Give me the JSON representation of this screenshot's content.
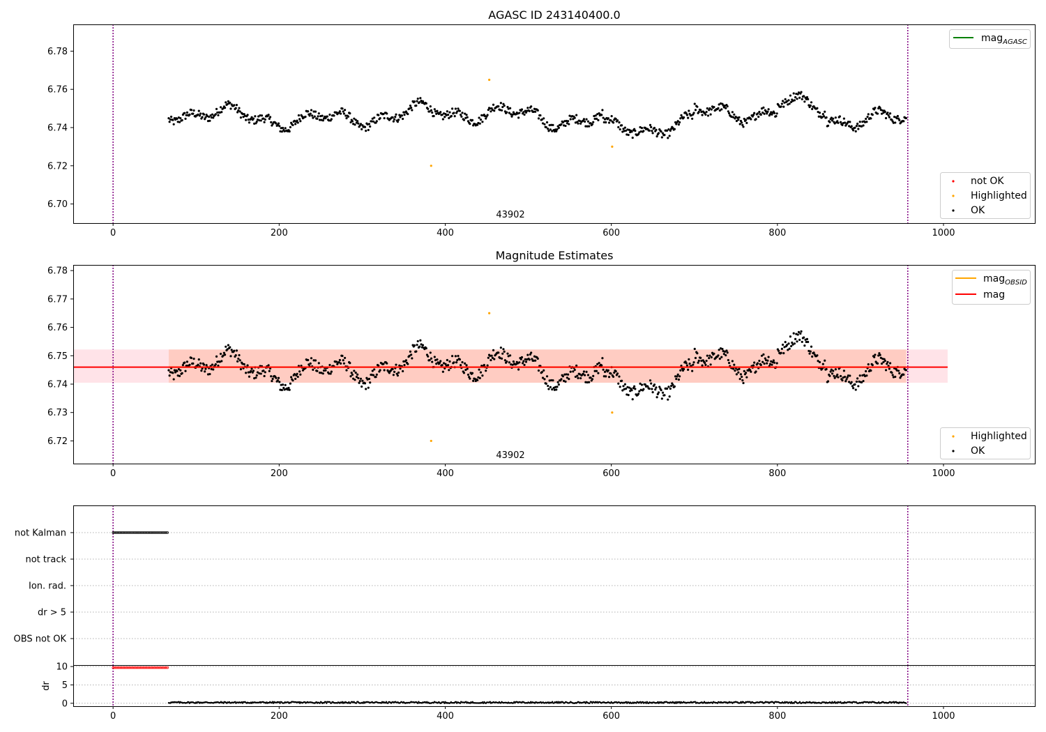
{
  "chart_data": [
    {
      "type": "scatter",
      "title": "AGASC ID 243140400.0",
      "xlim": [
        -48,
        1110
      ],
      "ylim": [
        6.69,
        6.794
      ],
      "x_ticks": [
        "0",
        "200",
        "400",
        "600",
        "800",
        "1000"
      ],
      "y_ticks": [
        "6.70",
        "6.72",
        "6.74",
        "6.76",
        "6.78"
      ],
      "vlines": [
        0,
        957
      ],
      "annotation": "43902",
      "legend_lines": [
        {
          "label": "mag",
          "subscript": "AGASC",
          "color": "#008000"
        }
      ],
      "legend_points": [
        {
          "label": "not OK",
          "color": "#ff0000"
        },
        {
          "label": "Highlighted",
          "color": "#ffa500"
        },
        {
          "label": "OK",
          "color": "#000000"
        }
      ],
      "series": [
        {
          "name": "OK",
          "color": "#000000",
          "x_range": [
            67,
            955
          ],
          "n_points": 880,
          "baseline": 6.746,
          "amplitude": 0.009
        },
        {
          "name": "Highlighted",
          "color": "#ffa500",
          "points": [
            [
              383,
              6.72
            ],
            [
              453,
              6.765
            ],
            [
              601,
              6.73
            ]
          ]
        }
      ]
    },
    {
      "type": "scatter",
      "title": "Magnitude Estimates",
      "xlim": [
        -48,
        1110
      ],
      "ylim": [
        6.712,
        6.782
      ],
      "x_ticks": [
        "0",
        "200",
        "400",
        "600",
        "800",
        "1000"
      ],
      "y_ticks": [
        "6.72",
        "6.73",
        "6.74",
        "6.75",
        "6.76",
        "6.77",
        "6.78"
      ],
      "vlines": [
        0,
        957
      ],
      "annotation": "43902",
      "mag_line": 6.746,
      "band_mag": [
        6.7405,
        6.7522
      ],
      "band_obsid": [
        6.7405,
        6.7522
      ],
      "legend_lines": [
        {
          "label": "mag",
          "subscript": "OBSID",
          "color": "#ffa500"
        },
        {
          "label": "mag",
          "subscript": "",
          "color": "#ff0000"
        }
      ],
      "legend_points": [
        {
          "label": "Highlighted",
          "color": "#ffa500"
        },
        {
          "label": "OK",
          "color": "#000000"
        }
      ],
      "series": [
        {
          "name": "OK",
          "color": "#000000",
          "x_range": [
            67,
            955
          ],
          "n_points": 880,
          "baseline": 6.746,
          "amplitude": 0.009
        },
        {
          "name": "Highlighted",
          "color": "#ffa500",
          "points": [
            [
              383,
              6.72
            ],
            [
              453,
              6.765
            ],
            [
              601,
              6.73
            ]
          ]
        }
      ]
    },
    {
      "type": "scatter",
      "title": "",
      "xlim": [
        -48,
        1110
      ],
      "categories": [
        "not Kalman",
        "not track",
        "Ion. rad.",
        "dr > 5",
        "OBS not OK"
      ],
      "flag_points": {
        "category": "not Kalman",
        "x_range": [
          0,
          67
        ],
        "color": "#000000"
      },
      "vlines": [
        0,
        957
      ]
    },
    {
      "type": "scatter",
      "title": "",
      "xlim": [
        -48,
        1110
      ],
      "ylim": [
        -0.8,
        10.4
      ],
      "ylabel": "dr",
      "x_ticks": [
        "0",
        "200",
        "400",
        "600",
        "800",
        "1000"
      ],
      "y_ticks": [
        "0",
        "5",
        "10"
      ],
      "vlines": [
        0,
        957
      ],
      "series": [
        {
          "name": "not OK",
          "color": "#ff0000",
          "x_range": [
            0,
            67
          ],
          "value": 9.7
        },
        {
          "name": "OK",
          "color": "#000000",
          "x_range": [
            67,
            955
          ],
          "value": 0.2
        }
      ]
    }
  ]
}
